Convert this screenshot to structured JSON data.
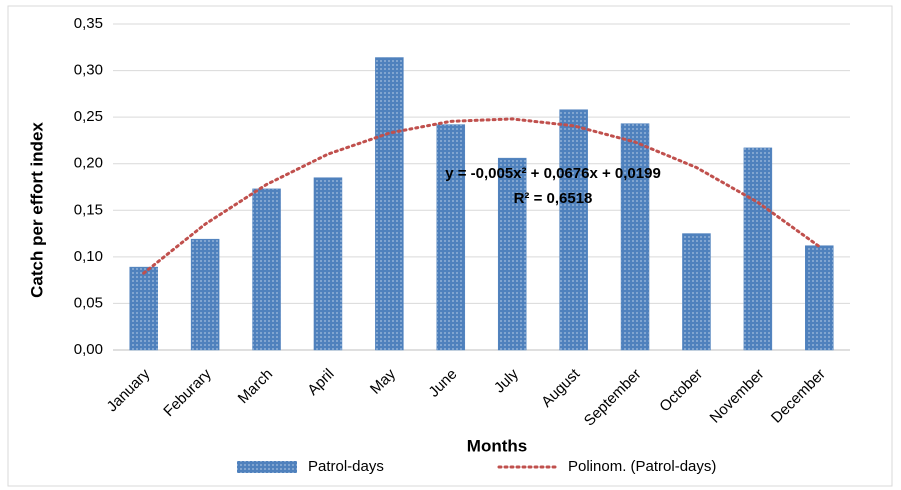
{
  "chart_data": {
    "type": "bar",
    "categories": [
      "January",
      "Feburary",
      "March",
      "April",
      "May",
      "June",
      "July",
      "August",
      "September",
      "October",
      "November",
      "December"
    ],
    "series": [
      {
        "name": "Patrol-days",
        "kind": "bar",
        "color": "#4f81bd",
        "values": [
          0.089,
          0.119,
          0.173,
          0.185,
          0.314,
          0.242,
          0.206,
          0.258,
          0.243,
          0.125,
          0.217,
          0.112
        ]
      },
      {
        "name": "Polinom. (Patrol-days)",
        "kind": "line",
        "color": "#c0504d",
        "values": [
          0.0825,
          0.1351,
          0.1777,
          0.2103,
          0.2329,
          0.2455,
          0.2481,
          0.2407,
          0.2233,
          0.1959,
          0.1585,
          0.1111
        ]
      }
    ],
    "ylim": [
      0,
      0.35
    ],
    "yticks": [
      {
        "value": 0,
        "label": "0,00"
      },
      {
        "value": 0.05,
        "label": "0,05"
      },
      {
        "value": 0.1,
        "label": "0,10"
      },
      {
        "value": 0.15,
        "label": "0,15"
      },
      {
        "value": 0.2,
        "label": "0,20"
      },
      {
        "value": 0.25,
        "label": "0,25"
      },
      {
        "value": 0.3,
        "label": "0,30"
      },
      {
        "value": 0.35,
        "label": "0,35"
      }
    ],
    "y_label": "Catch per effort index",
    "x_label": "Months",
    "annotations": [
      "y = -0,005x² + 0,0676x + 0,0199",
      "R² = 0,6518"
    ],
    "grid": true
  }
}
